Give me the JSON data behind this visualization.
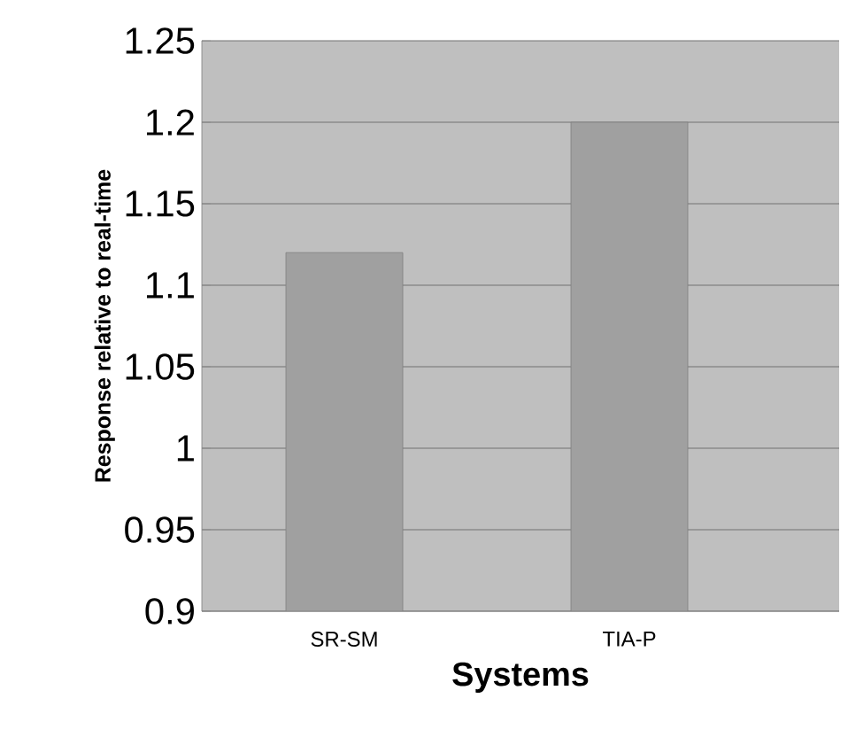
{
  "chart_data": {
    "type": "bar",
    "xlabel": "Systems",
    "ylabel": "Response relative to real-time",
    "categories": [
      "SR-SM",
      "TIA-P"
    ],
    "values": [
      1.12,
      1.2
    ],
    "color": "#a0a0a0",
    "ylim": [
      0.9,
      1.25
    ],
    "yticks": [
      0.9,
      0.95,
      1,
      1.05,
      1.1,
      1.15,
      1.2,
      1.25
    ],
    "grid": "y"
  }
}
